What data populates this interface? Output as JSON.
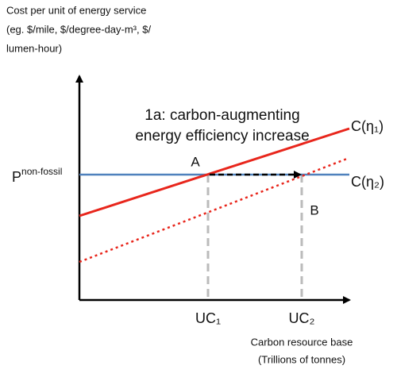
{
  "y_axis_label": [
    "Cost per unit of energy service",
    "(eg. $/mile, $/degree-day-m³, $/",
    "lumen-hour)"
  ],
  "title": [
    "1a: carbon-augmenting",
    "energy efficiency increase"
  ],
  "price_label": {
    "base": "P",
    "superscript": "non-fossil"
  },
  "curves": [
    {
      "label": "C(η₁)"
    },
    {
      "label": "C(η₂)"
    }
  ],
  "points": [
    "A",
    "B"
  ],
  "x_markers": [
    "UC₁",
    "UC₂"
  ],
  "x_axis_label": [
    "Carbon resource base",
    "(Trillions of tonnes)"
  ]
}
